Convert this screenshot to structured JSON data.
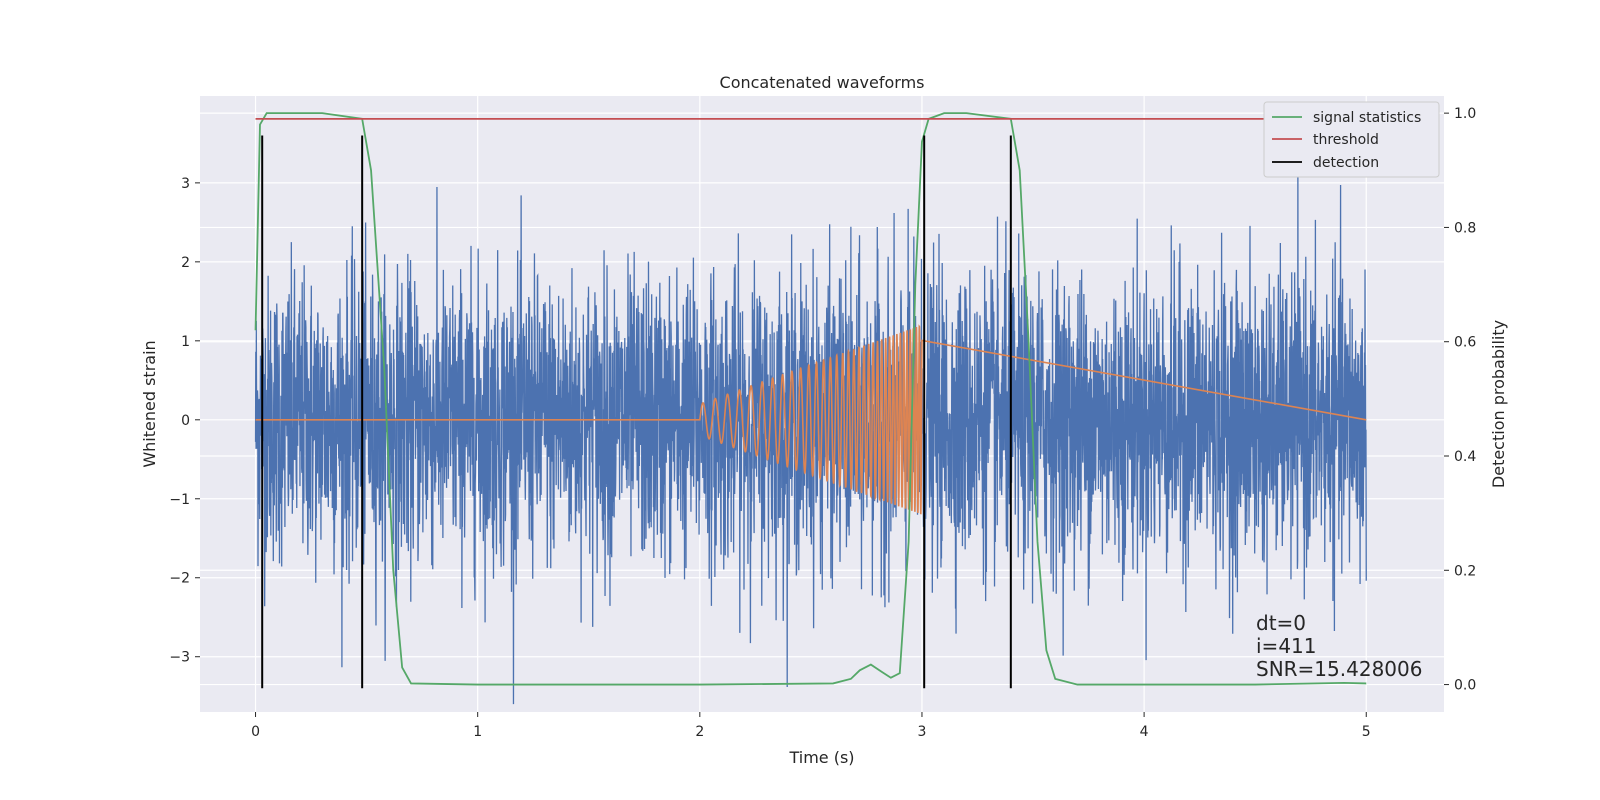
{
  "chart_data": {
    "type": "line",
    "title": "Concatenated waveforms",
    "xlabel": "Time (s)",
    "ylabel": "Whitened strain",
    "ylabel_right": "Detection probability",
    "xlim": [
      -0.25,
      5.35
    ],
    "ylim": [
      -3.7,
      4.1
    ],
    "ylim_right": [
      -0.048,
      1.03
    ],
    "x_ticks": [
      0,
      1,
      2,
      3,
      4,
      5
    ],
    "y_ticks": [
      -3,
      -2,
      -1,
      0,
      1,
      2,
      3
    ],
    "y_ticks_right": [
      0.0,
      0.2,
      0.4,
      0.6,
      0.8,
      1.0
    ],
    "y_tick_labels": [
      "−3",
      "−2",
      "−1",
      "0",
      "1",
      "2",
      "3"
    ],
    "y_tick_labels_right": [
      "0.0",
      "0.2",
      "0.4",
      "0.6",
      "0.8",
      "1.0"
    ],
    "grid": true,
    "legend_placement": "top-right",
    "colors": {
      "strain": "#4c72b0",
      "injection": "#dd8452",
      "signal_statistics": "#55a868",
      "threshold": "#c44e52",
      "detection": "#000000",
      "background": "#eaeaf2"
    },
    "series": [
      {
        "name": "strain",
        "axis": "left",
        "description_range": [
          0,
          5
        ],
        "noise_amplitude_peak": 3.6
      },
      {
        "name": "injection",
        "axis": "left",
        "chirp_start": 2.0,
        "chirp_end": 3.0,
        "amplitude_start": 0.2,
        "amplitude_end": 1.2
      },
      {
        "name": "signal statistics",
        "axis": "right",
        "x": [
          0,
          0.02,
          0.05,
          0.1,
          0.3,
          0.48,
          0.52,
          0.58,
          0.62,
          0.66,
          0.7,
          1.0,
          2.0,
          2.6,
          2.68,
          2.72,
          2.77,
          2.82,
          2.86,
          2.9,
          2.94,
          2.97,
          3.0,
          3.03,
          3.1,
          3.2,
          3.4,
          3.44,
          3.48,
          3.52,
          3.56,
          3.6,
          3.7,
          4.0,
          4.5,
          4.9,
          5.0
        ],
        "y": [
          0.62,
          0.98,
          1.0,
          1.0,
          1.0,
          0.99,
          0.9,
          0.55,
          0.2,
          0.03,
          0.002,
          0.0,
          0.0,
          0.002,
          0.01,
          0.025,
          0.035,
          0.022,
          0.012,
          0.02,
          0.25,
          0.7,
          0.95,
          0.99,
          1.0,
          1.0,
          0.99,
          0.9,
          0.6,
          0.25,
          0.06,
          0.01,
          0.0,
          0.0,
          0.0,
          0.003,
          0.002
        ]
      },
      {
        "name": "threshold",
        "axis": "right",
        "x": [
          0,
          5
        ],
        "y": [
          0.99,
          0.99
        ]
      },
      {
        "name": "detection",
        "axis": "left",
        "vertical_lines_x": [
          0.03,
          0.48,
          3.01,
          3.4
        ],
        "y_range": [
          -3.4,
          3.6
        ]
      }
    ],
    "legend": [
      "signal statistics",
      "threshold",
      "detection"
    ],
    "annotations": [
      "dt=0",
      "i=411",
      "SNR=15.428006"
    ]
  }
}
